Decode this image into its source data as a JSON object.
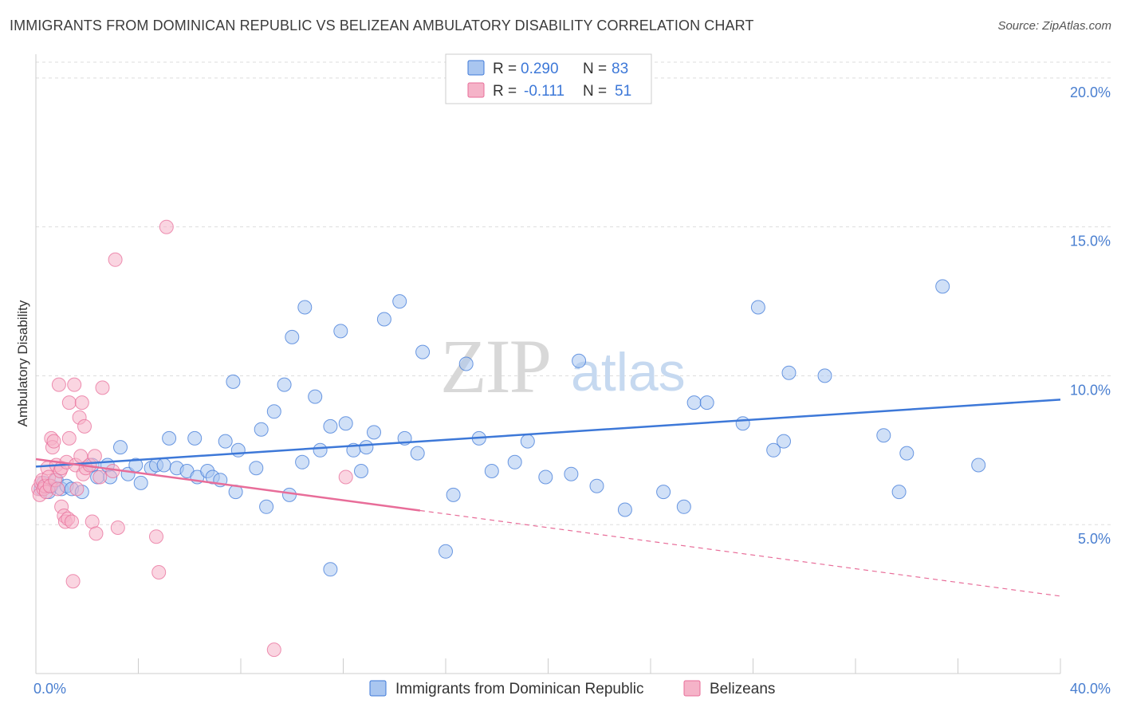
{
  "title": "IMMIGRANTS FROM DOMINICAN REPUBLIC VS BELIZEAN AMBULATORY DISABILITY CORRELATION CHART",
  "source": "Source: ZipAtlas.com",
  "watermark": {
    "zip": "ZIP",
    "atlas": "atlas"
  },
  "colors": {
    "blue": "#3d78d8",
    "blue_fill": "#a9c6f0",
    "pink": "#e86d99",
    "pink_fill": "#f5b3c8",
    "grid": "#dddddd",
    "tick_text": "#4a7fd0"
  },
  "legend": {
    "blue": {
      "r_label": "R =",
      "r_value": "0.290",
      "n_label": "N =",
      "n_value": "83"
    },
    "pink": {
      "r_label": "R =",
      "r_value": "-0.111",
      "n_label": "N =",
      "n_value": "51"
    }
  },
  "chart_data": {
    "type": "scatter",
    "title": "IMMIGRANTS FROM DOMINICAN REPUBLIC VS BELIZEAN AMBULATORY DISABILITY CORRELATION CHART",
    "xlabel": "",
    "ylabel": "Ambulatory Disability",
    "xlim": [
      0,
      40
    ],
    "ylim": [
      0,
      20.8
    ],
    "x_tick_labels": [
      "0.0%",
      "40.0%"
    ],
    "y_ticks": [
      5,
      10,
      15,
      20
    ],
    "y_tick_labels": [
      "5.0%",
      "10.0%",
      "15.0%",
      "20.0%"
    ],
    "series": [
      {
        "name": "Immigrants from Dominican Republic",
        "color": "blue",
        "trend": {
          "x0": 0,
          "y0": 6.95,
          "x1": 40,
          "y1": 9.2,
          "dashed_from": null
        },
        "points": [
          [
            0.2,
            6.2
          ],
          [
            0.3,
            6.4
          ],
          [
            0.4,
            6.3
          ],
          [
            0.5,
            6.1
          ],
          [
            0.6,
            6.3
          ],
          [
            0.8,
            6.5
          ],
          [
            1.0,
            6.2
          ],
          [
            1.2,
            6.3
          ],
          [
            1.4,
            6.2
          ],
          [
            1.8,
            6.1
          ],
          [
            2.2,
            7.0
          ],
          [
            2.4,
            6.6
          ],
          [
            2.8,
            7.0
          ],
          [
            2.9,
            6.6
          ],
          [
            3.3,
            7.6
          ],
          [
            3.6,
            6.7
          ],
          [
            3.9,
            7.0
          ],
          [
            4.1,
            6.4
          ],
          [
            4.5,
            6.9
          ],
          [
            4.7,
            7.0
          ],
          [
            5.0,
            7.0
          ],
          [
            5.2,
            7.9
          ],
          [
            5.5,
            6.9
          ],
          [
            5.9,
            6.8
          ],
          [
            6.3,
            6.6
          ],
          [
            6.2,
            7.9
          ],
          [
            6.7,
            6.8
          ],
          [
            6.9,
            6.6
          ],
          [
            7.2,
            6.5
          ],
          [
            7.4,
            7.8
          ],
          [
            7.7,
            9.8
          ],
          [
            7.8,
            6.1
          ],
          [
            7.9,
            7.5
          ],
          [
            8.6,
            6.9
          ],
          [
            8.8,
            8.2
          ],
          [
            9.0,
            5.6
          ],
          [
            9.3,
            8.8
          ],
          [
            9.7,
            9.7
          ],
          [
            9.9,
            6.0
          ],
          [
            10.0,
            11.3
          ],
          [
            10.4,
            7.1
          ],
          [
            10.5,
            12.3
          ],
          [
            10.9,
            9.3
          ],
          [
            11.1,
            7.5
          ],
          [
            11.5,
            8.3
          ],
          [
            11.5,
            3.5
          ],
          [
            11.9,
            11.5
          ],
          [
            12.1,
            8.4
          ],
          [
            12.4,
            7.5
          ],
          [
            12.7,
            6.8
          ],
          [
            12.9,
            7.6
          ],
          [
            13.2,
            8.1
          ],
          [
            13.6,
            11.9
          ],
          [
            14.2,
            12.5
          ],
          [
            14.4,
            7.9
          ],
          [
            14.9,
            7.4
          ],
          [
            15.1,
            10.8
          ],
          [
            16.0,
            4.1
          ],
          [
            16.3,
            6.0
          ],
          [
            16.8,
            10.4
          ],
          [
            17.3,
            7.9
          ],
          [
            17.8,
            6.8
          ],
          [
            18.7,
            7.1
          ],
          [
            19.2,
            7.8
          ],
          [
            19.9,
            6.6
          ],
          [
            20.9,
            6.7
          ],
          [
            21.2,
            10.5
          ],
          [
            21.9,
            6.3
          ],
          [
            23.0,
            5.5
          ],
          [
            24.5,
            6.1
          ],
          [
            25.3,
            5.6
          ],
          [
            25.7,
            9.1
          ],
          [
            26.2,
            9.1
          ],
          [
            27.6,
            8.4
          ],
          [
            28.2,
            12.3
          ],
          [
            28.8,
            7.5
          ],
          [
            29.2,
            7.8
          ],
          [
            29.4,
            10.1
          ],
          [
            30.8,
            10.0
          ],
          [
            33.1,
            8.0
          ],
          [
            33.7,
            6.1
          ],
          [
            34.0,
            7.4
          ],
          [
            35.4,
            13.0
          ],
          [
            36.8,
            7.0
          ]
        ]
      },
      {
        "name": "Belizeans",
        "color": "pink",
        "trend": {
          "x0": 0,
          "y0": 7.2,
          "x1": 40,
          "y1": 2.6,
          "dashed_from": 15
        },
        "points": [
          [
            0.1,
            6.2
          ],
          [
            0.15,
            6.0
          ],
          [
            0.2,
            6.4
          ],
          [
            0.25,
            6.5
          ],
          [
            0.3,
            6.2
          ],
          [
            0.35,
            6.3
          ],
          [
            0.4,
            6.1
          ],
          [
            0.45,
            6.9
          ],
          [
            0.5,
            6.6
          ],
          [
            0.55,
            6.3
          ],
          [
            0.6,
            7.9
          ],
          [
            0.65,
            7.6
          ],
          [
            0.7,
            7.8
          ],
          [
            0.75,
            6.5
          ],
          [
            0.8,
            7.0
          ],
          [
            0.85,
            6.2
          ],
          [
            0.9,
            9.7
          ],
          [
            0.95,
            6.8
          ],
          [
            1.0,
            6.9
          ],
          [
            1.0,
            5.6
          ],
          [
            1.1,
            5.3
          ],
          [
            1.15,
            5.1
          ],
          [
            1.2,
            7.1
          ],
          [
            1.25,
            5.2
          ],
          [
            1.3,
            9.1
          ],
          [
            1.3,
            7.9
          ],
          [
            1.4,
            5.1
          ],
          [
            1.45,
            3.1
          ],
          [
            1.5,
            9.7
          ],
          [
            1.55,
            7.0
          ],
          [
            1.6,
            6.2
          ],
          [
            1.7,
            8.6
          ],
          [
            1.75,
            7.3
          ],
          [
            1.8,
            9.1
          ],
          [
            1.85,
            6.7
          ],
          [
            1.9,
            8.3
          ],
          [
            1.95,
            6.9
          ],
          [
            2.1,
            7.0
          ],
          [
            2.2,
            5.1
          ],
          [
            2.3,
            7.3
          ],
          [
            2.35,
            4.7
          ],
          [
            2.5,
            6.6
          ],
          [
            2.6,
            9.6
          ],
          [
            3.0,
            6.8
          ],
          [
            3.1,
            13.9
          ],
          [
            3.2,
            4.9
          ],
          [
            4.7,
            4.6
          ],
          [
            4.8,
            3.4
          ],
          [
            5.1,
            15.0
          ],
          [
            9.3,
            0.8
          ],
          [
            12.1,
            6.6
          ]
        ]
      }
    ],
    "legend_bottom": [
      "Immigrants from Dominican Republic",
      "Belizeans"
    ]
  }
}
